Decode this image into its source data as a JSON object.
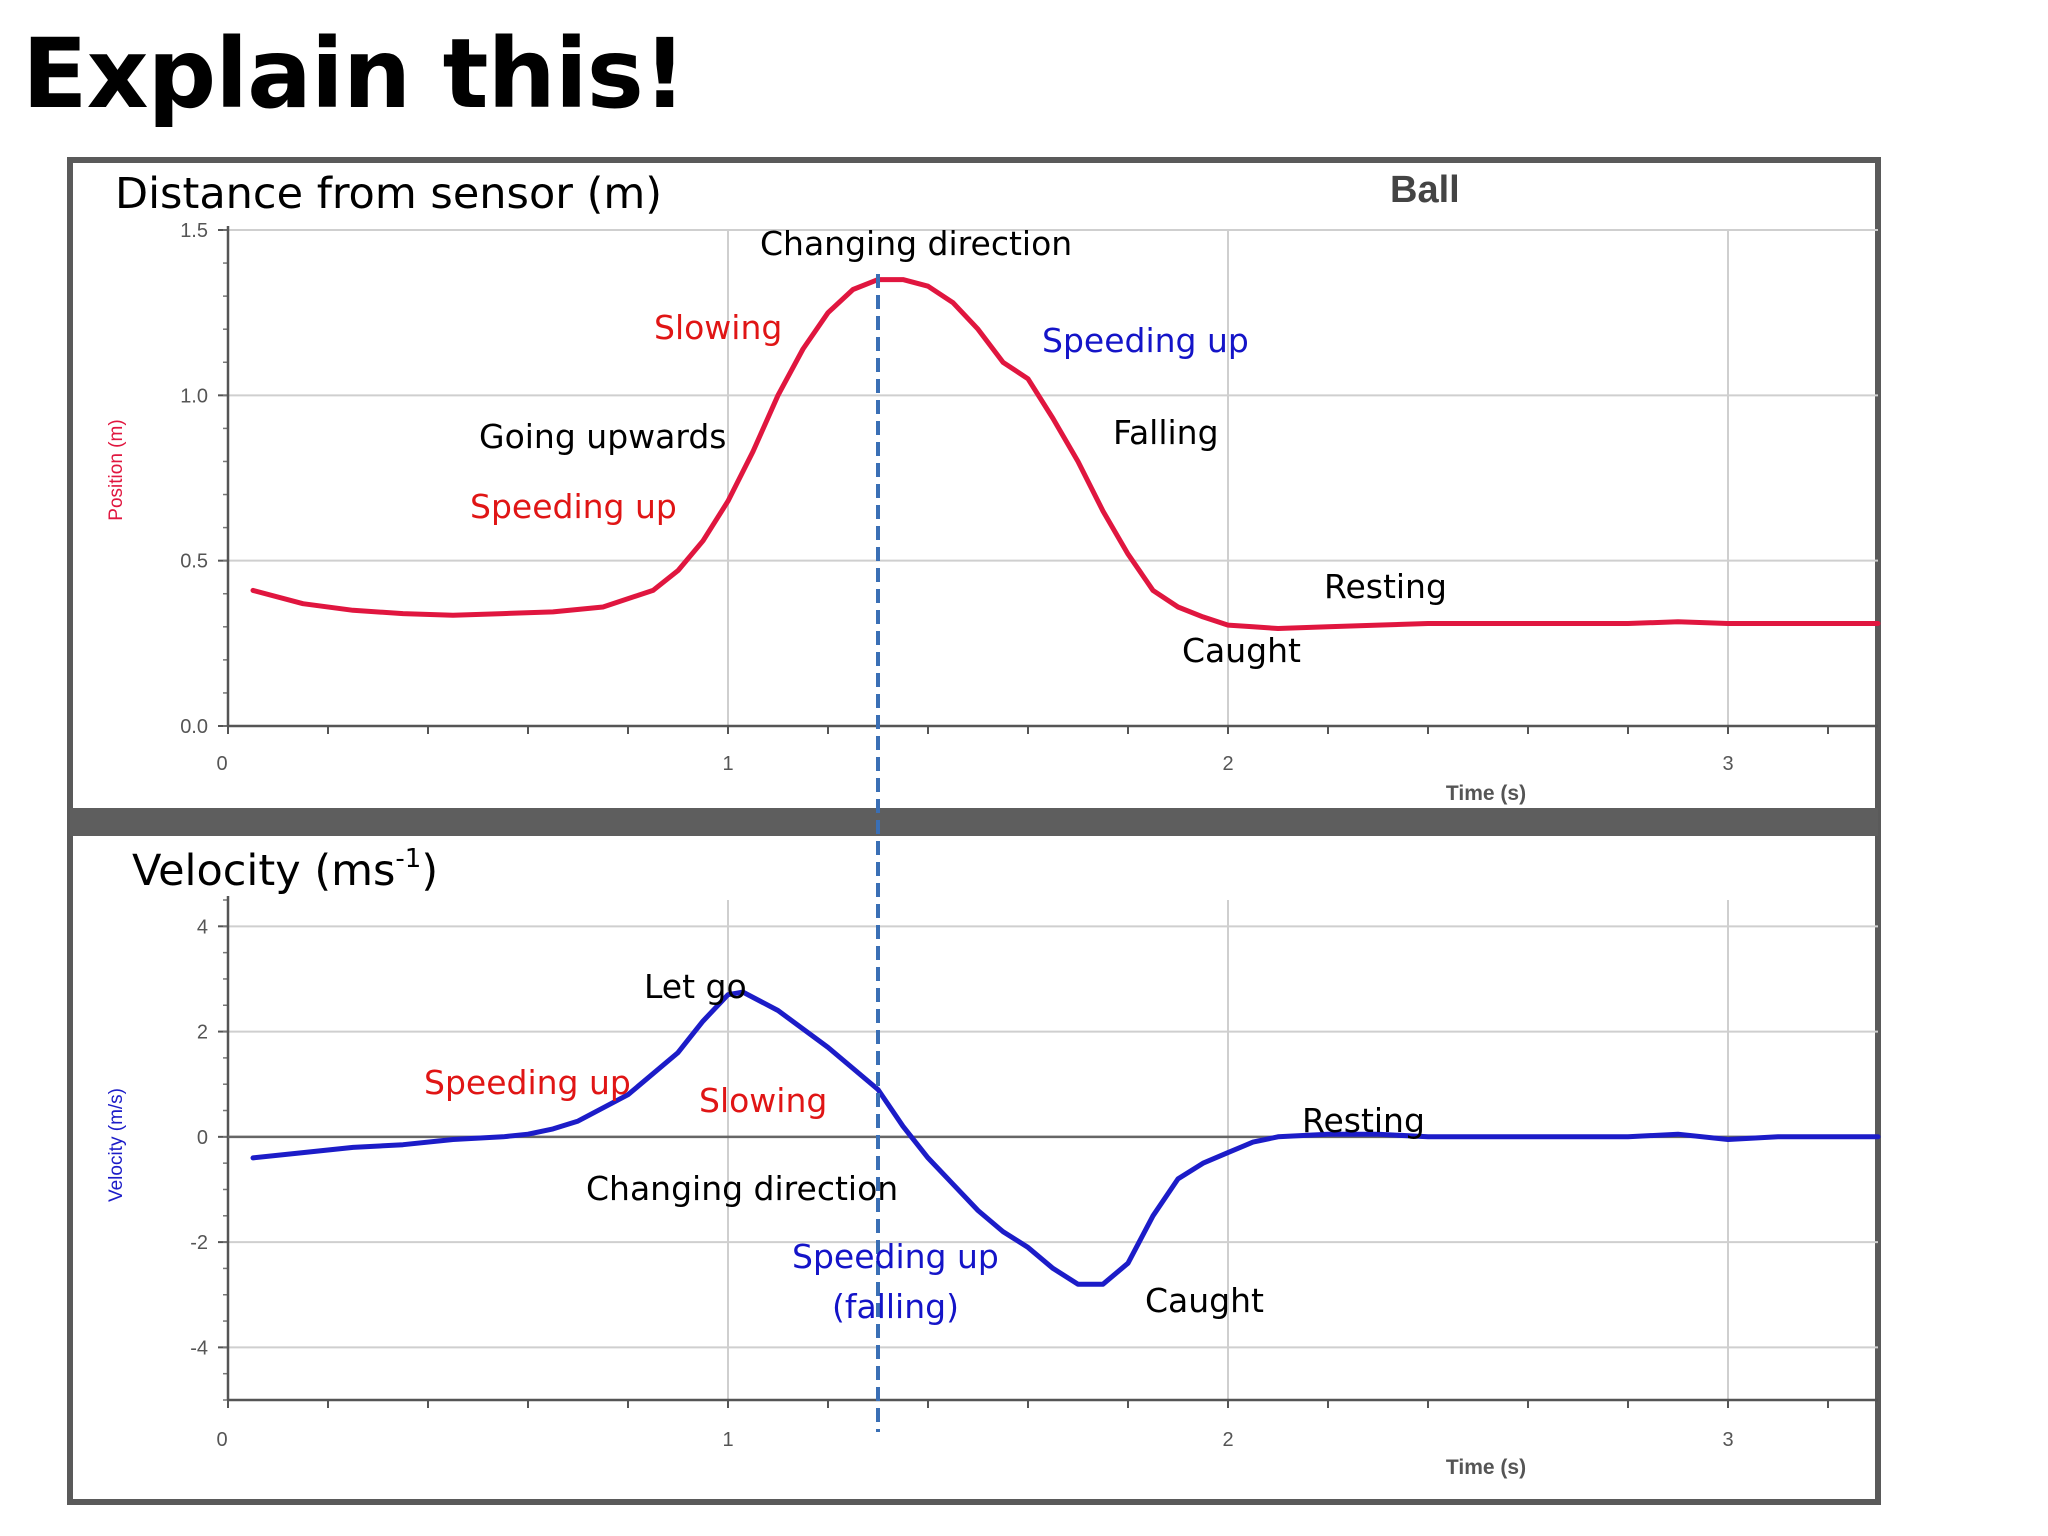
{
  "title": "Explain this!",
  "colors": {
    "position_line": "#e0163f",
    "velocity_line": "#1c1cc8",
    "annotation_red": "#e01515",
    "annotation_blue": "#1414c8",
    "annotation_black": "#000000",
    "divider_line": "#3a6fb5"
  },
  "panels": {
    "position": {
      "heading": "Distance from sensor (m)",
      "tag": "Ball",
      "ylabel": "Position (m)",
      "xlabel": "Time (s)"
    },
    "velocity": {
      "heading_main": "Velocity (ms",
      "heading_sup": "-1",
      "heading_close": ")",
      "ylabel": "Velocity (m/s)",
      "xlabel": "Time (s)"
    }
  },
  "annotations": {
    "position": [
      {
        "text": "Changing direction",
        "color": "black"
      },
      {
        "text": "Slowing",
        "color": "red"
      },
      {
        "text": "Speeding up",
        "color": "blue"
      },
      {
        "text": "Going upwards",
        "color": "black"
      },
      {
        "text": "Falling",
        "color": "black"
      },
      {
        "text": "Speeding up",
        "color": "red"
      },
      {
        "text": "Resting",
        "color": "black"
      },
      {
        "text": "Caught",
        "color": "black"
      }
    ],
    "velocity": [
      {
        "text": "Let go",
        "color": "black"
      },
      {
        "text": "Speeding up",
        "color": "red"
      },
      {
        "text": "Slowing",
        "color": "red"
      },
      {
        "text": "Resting",
        "color": "black"
      },
      {
        "text": "Changing direction",
        "color": "black"
      },
      {
        "text": "Speeding up",
        "color": "blue"
      },
      {
        "text": "(falling)",
        "color": "blue"
      },
      {
        "text": "Caught",
        "color": "black"
      }
    ]
  },
  "chart_data": [
    {
      "type": "line",
      "xlabel": "Time (s)",
      "ylabel": "Position (m)",
      "xlim": [
        0,
        3.3
      ],
      "ylim": [
        0,
        1.5
      ],
      "x_ticks": [
        "0",
        "1",
        "2",
        "3"
      ],
      "y_ticks": [
        "0.0",
        "0.5",
        "1.0",
        "1.5"
      ],
      "grid": true,
      "series": [
        {
          "x": [
            0.05,
            0.15,
            0.25,
            0.35,
            0.45,
            0.55,
            0.65,
            0.75,
            0.85,
            0.9,
            0.95,
            1.0,
            1.05,
            1.1,
            1.15,
            1.2,
            1.25,
            1.3,
            1.35,
            1.4,
            1.45,
            1.5,
            1.55,
            1.6,
            1.65,
            1.7,
            1.75,
            1.8,
            1.85,
            1.9,
            1.95,
            2.0,
            2.05,
            2.1,
            2.2,
            2.3,
            2.4,
            2.5,
            2.6,
            2.7,
            2.8,
            2.9,
            3.0,
            3.1,
            3.2,
            3.3
          ],
          "y": [
            0.41,
            0.37,
            0.35,
            0.34,
            0.335,
            0.34,
            0.345,
            0.36,
            0.41,
            0.47,
            0.56,
            0.68,
            0.83,
            1.0,
            1.14,
            1.25,
            1.32,
            1.35,
            1.35,
            1.33,
            1.28,
            1.2,
            1.1,
            1.05,
            0.93,
            0.8,
            0.65,
            0.52,
            0.41,
            0.36,
            0.33,
            0.305,
            0.3,
            0.295,
            0.3,
            0.305,
            0.31,
            0.31,
            0.31,
            0.31,
            0.31,
            0.315,
            0.31,
            0.31,
            0.31,
            0.31
          ]
        }
      ]
    },
    {
      "type": "line",
      "xlabel": "Time (s)",
      "ylabel": "Velocity (m/s)",
      "xlim": [
        0,
        3.3
      ],
      "ylim": [
        -5,
        4.5
      ],
      "x_ticks": [
        "0",
        "1",
        "2",
        "3"
      ],
      "y_ticks": [
        "4",
        "2",
        "0",
        "-2",
        "-4"
      ],
      "grid": true,
      "series": [
        {
          "x": [
            0.05,
            0.15,
            0.25,
            0.35,
            0.45,
            0.55,
            0.6,
            0.65,
            0.7,
            0.8,
            0.9,
            0.95,
            1.0,
            1.03,
            1.1,
            1.2,
            1.3,
            1.35,
            1.4,
            1.45,
            1.5,
            1.55,
            1.6,
            1.65,
            1.7,
            1.75,
            1.8,
            1.85,
            1.9,
            1.95,
            2.0,
            2.05,
            2.1,
            2.2,
            2.3,
            2.4,
            2.5,
            2.6,
            2.7,
            2.8,
            2.9,
            3.0,
            3.1,
            3.2,
            3.3
          ],
          "y": [
            -0.4,
            -0.3,
            -0.2,
            -0.15,
            -0.05,
            0.0,
            0.05,
            0.15,
            0.3,
            0.8,
            1.6,
            2.2,
            2.7,
            2.75,
            2.4,
            1.7,
            0.9,
            0.2,
            -0.4,
            -0.9,
            -1.4,
            -1.8,
            -2.1,
            -2.5,
            -2.8,
            -2.8,
            -2.4,
            -1.5,
            -0.8,
            -0.5,
            -0.3,
            -0.1,
            0.0,
            0.05,
            0.05,
            0.0,
            0.0,
            0.0,
            0.0,
            0.0,
            0.05,
            -0.05,
            0.0,
            0.0,
            0.0
          ]
        }
      ]
    }
  ]
}
